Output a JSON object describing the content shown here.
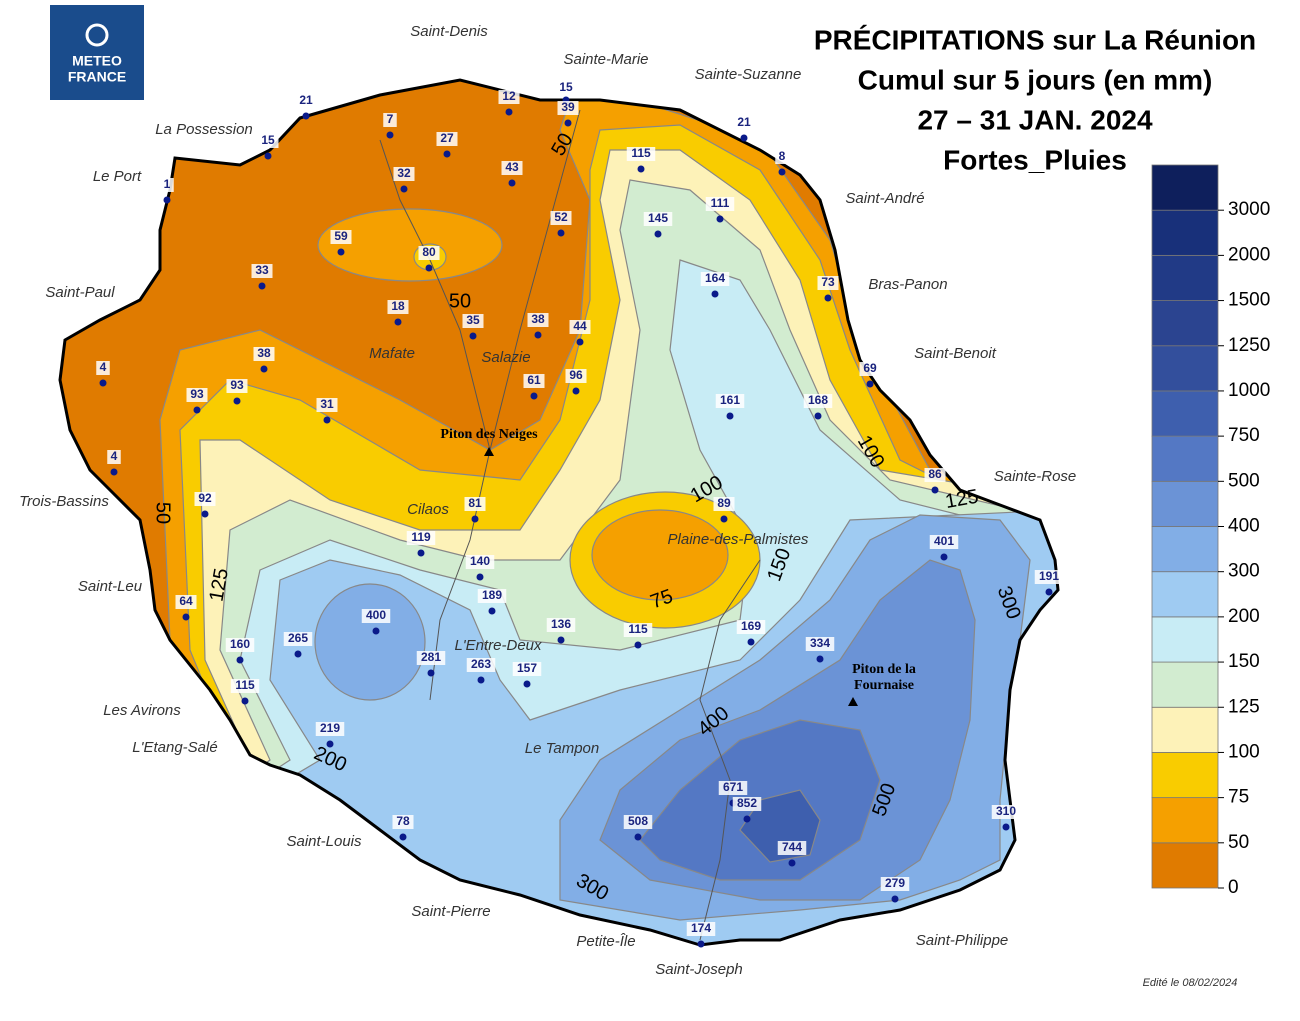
{
  "logo": [
    "METEO",
    "FRANCE"
  ],
  "title": [
    "PRÉCIPITATIONS sur La Réunion",
    "Cumul sur 5 jours (en mm)",
    "27 – 31 JAN. 2024",
    "Fortes_Pluies"
  ],
  "places": [
    "Saint-Denis",
    "Sainte-Marie",
    "Sainte-Suzanne",
    "La Possession",
    "Le Port",
    "Saint-André",
    "Saint-Paul",
    "Bras-Panon",
    "Saint-Benoit",
    "Mafate",
    "Salazie",
    "Sainte-Rose",
    "Trois-Bassins",
    "Cilaos",
    "Plaine-des-Palmistes",
    "Saint-Leu",
    "L'Entre-Deux",
    "Les Avirons",
    "L'Etang-Salé",
    "Le Tampon",
    "Saint-Louis",
    "Saint-Pierre",
    "Petite-Île",
    "Saint-Philippe",
    "Saint-Joseph"
  ],
  "peaks": [
    [
      "Piton des Neiges"
    ],
    [
      "Piton de la",
      "Fournaise"
    ]
  ],
  "stations": [
    21,
    15,
    1,
    7,
    27,
    12,
    15,
    39,
    32,
    43,
    59,
    80,
    52,
    33,
    18,
    35,
    38,
    44,
    115,
    145,
    111,
    21,
    8,
    164,
    73,
    69,
    4,
    38,
    93,
    93,
    31,
    61,
    96,
    161,
    168,
    4,
    92,
    81,
    89,
    86,
    119,
    140,
    189,
    401,
    191,
    64,
    400,
    136,
    115,
    169,
    160,
    265,
    281,
    263,
    157,
    334,
    115,
    219,
    671,
    852,
    508,
    78,
    744,
    310,
    279,
    174
  ],
  "contour_labels": [
    50,
    50,
    50,
    125,
    200,
    300,
    75,
    100,
    150,
    100,
    125,
    300,
    400,
    500
  ],
  "legend": {
    "levels": [
      0,
      50,
      75,
      100,
      125,
      150,
      200,
      300,
      400,
      500,
      750,
      1000,
      1250,
      1500,
      2000,
      3000
    ],
    "colors": [
      "#e07b00",
      "#f5a000",
      "#f9cc00",
      "#fdf2b8",
      "#d2ecd0",
      "#c8ecf5",
      "#9fcbf2",
      "#82aee6",
      "#6b93d6",
      "#5478c4",
      "#3e5fae",
      "#334f9c",
      "#2b4490",
      "#213a86",
      "#18307a",
      "#0e1f5c"
    ]
  },
  "edit_note": "Edité le 08/02/2024"
}
